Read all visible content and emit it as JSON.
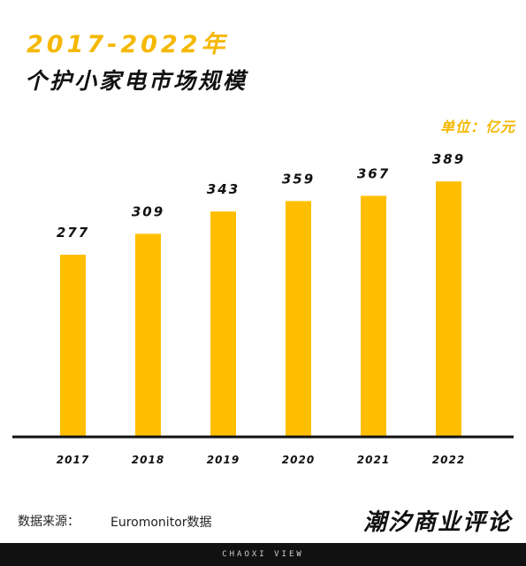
{
  "header": {
    "year_range": "2017-2022年",
    "title": "个护小家电市场规模",
    "unit_label": "单位：亿元"
  },
  "source": {
    "label": "数据来源：",
    "value": "Euromonitor数据"
  },
  "brand": {
    "name": "潮汐商业评论"
  },
  "footer": {
    "text": "CHAOXI VIEW"
  },
  "colors": {
    "accent": "#F5B800",
    "bar": "#FFBF00",
    "text": "#111111",
    "footer_bg": "#111111"
  },
  "chart_data": {
    "type": "bar",
    "categories": [
      "2017",
      "2018",
      "2019",
      "2020",
      "2021",
      "2022"
    ],
    "values": [
      277,
      309,
      343,
      359,
      367,
      389
    ],
    "title": "个护小家电市场规模",
    "subtitle": "2017-2022年",
    "unit": "亿元",
    "xlabel": "",
    "ylabel": "",
    "ylim": [
      0,
      400
    ],
    "grid": false,
    "legend": "none",
    "data_labels": true
  }
}
